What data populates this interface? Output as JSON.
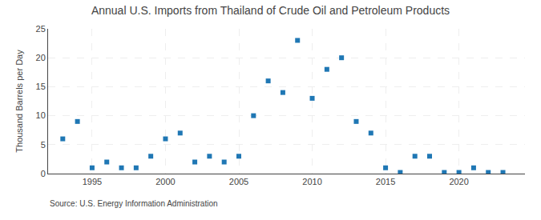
{
  "chart_data": {
    "type": "scatter",
    "title": "Annual U.S. Imports from Thailand of Crude Oil and Petroleum Products",
    "ylabel": "Thousand Barrels per Day",
    "annotations": [
      "Source: U.S. Energy Information Administration"
    ],
    "x": [
      1993,
      1994,
      1995,
      1996,
      1997,
      1998,
      1999,
      2000,
      2001,
      2002,
      2003,
      2004,
      2005,
      2006,
      2007,
      2008,
      2009,
      2010,
      2011,
      2012,
      2013,
      2014,
      2015,
      2016,
      2017,
      2018,
      2019,
      2020,
      2021,
      2022,
      2023
    ],
    "values": [
      6,
      9,
      1,
      2,
      1,
      1,
      3,
      6,
      7,
      2,
      3,
      2,
      3,
      10,
      16,
      14,
      23,
      13,
      18,
      20,
      9,
      7,
      1,
      0.2,
      3,
      3,
      0.2,
      0.2,
      1,
      0.2,
      0.2
    ],
    "marker": "square",
    "xlim": [
      1992.0,
      2024.5
    ],
    "xticks": [
      1995,
      2000,
      2005,
      2010,
      2015,
      2020
    ],
    "ylim": [
      0,
      25
    ],
    "yticks": [
      0,
      5,
      10,
      15,
      20,
      25
    ],
    "grid": true
  }
}
